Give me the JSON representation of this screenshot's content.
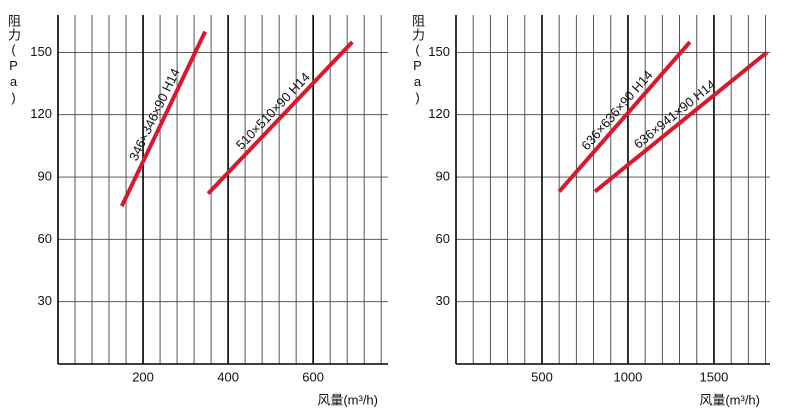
{
  "chart_data": [
    {
      "type": "line",
      "ylabel": "阻力(Pa)",
      "xlabel": "风量(m³/h)",
      "xlim": [
        0,
        776
      ],
      "ylim": [
        0,
        168
      ],
      "xticks": [
        200,
        400,
        600
      ],
      "yticks": [
        30,
        60,
        90,
        120,
        150
      ],
      "xgrid": [
        40,
        80,
        120,
        160,
        240,
        280,
        320,
        360,
        440,
        480,
        520,
        560,
        640,
        680,
        720,
        760
      ],
      "series": [
        {
          "name": "346×346×90 H14",
          "color": "#d9182b",
          "x": [
            150,
            346
          ],
          "values": [
            76,
            160
          ]
        },
        {
          "name": "510×510×90 H14",
          "color": "#d9182b",
          "x": [
            353,
            692
          ],
          "values": [
            82,
            155
          ]
        }
      ]
    },
    {
      "type": "line",
      "ylabel": "阻力(Pa)",
      "xlabel": "风量(m³/h)",
      "xlim": [
        0,
        1826
      ],
      "ylim": [
        0,
        168
      ],
      "xticks": [
        500,
        1000,
        1500
      ],
      "yticks": [
        30,
        60,
        90,
        120,
        150
      ],
      "xgrid": [
        100,
        200,
        300,
        400,
        600,
        700,
        800,
        900,
        1100,
        1200,
        1300,
        1400,
        1600,
        1700,
        1800
      ],
      "series": [
        {
          "name": "636×636×90 H14",
          "color": "#d9182b",
          "x": [
            600,
            1360
          ],
          "values": [
            83,
            155
          ]
        },
        {
          "name": "636×941×90 H14",
          "color": "#d9182b",
          "x": [
            808,
            1808
          ],
          "values": [
            83,
            150
          ]
        }
      ]
    }
  ]
}
